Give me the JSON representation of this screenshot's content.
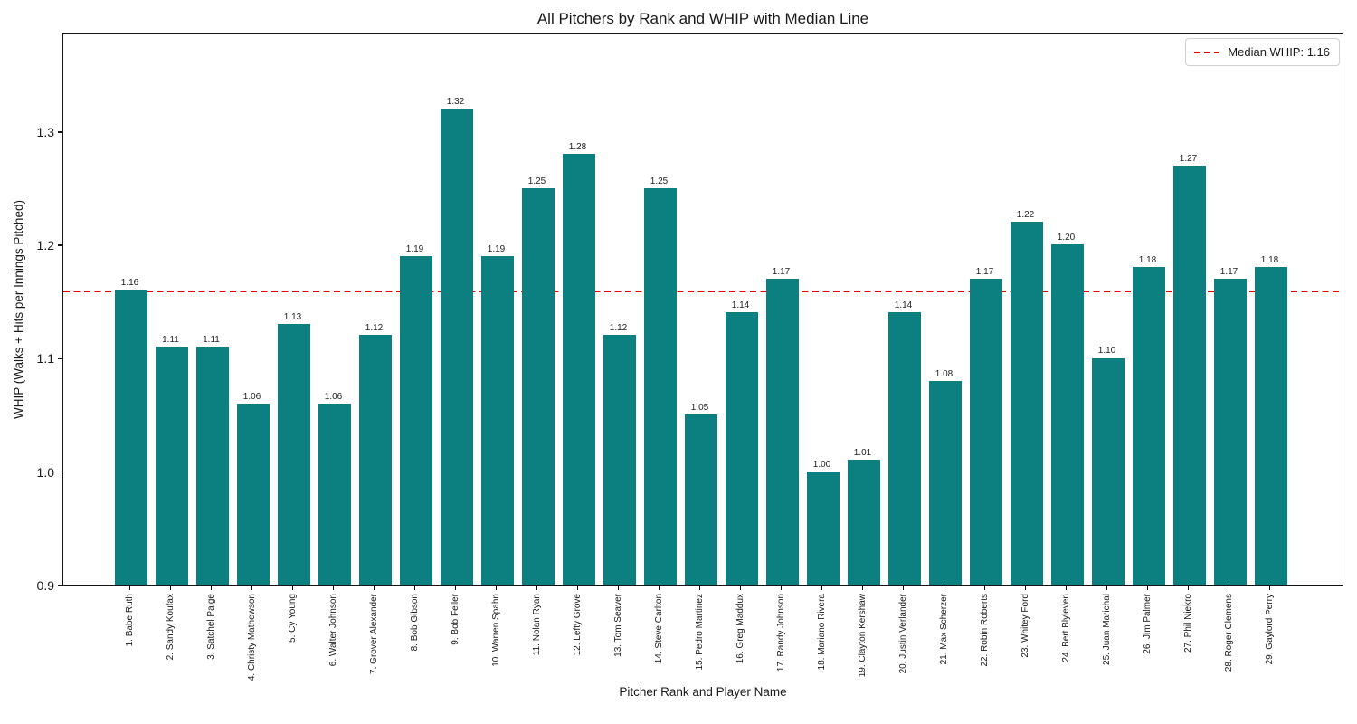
{
  "title": "All Pitchers by Rank and WHIP with Median Line",
  "legend": {
    "label": "Median WHIP: 1.16",
    "position": "upper right"
  },
  "axes": {
    "x_label": "Pitcher Rank and Player Name",
    "y_label": "WHIP (Walks + Hits per Innings Pitched)"
  },
  "colors": {
    "bar": "#0c8080",
    "median_line": "#ee0000",
    "text": "#1a1a1a",
    "spine": "#141414"
  },
  "chart_data": {
    "type": "bar",
    "title": "All Pitchers by Rank and WHIP with Median Line",
    "xlabel": "Pitcher Rank and Player Name",
    "ylabel": "WHIP (Walks + Hits per Innings Pitched)",
    "categories": [
      "1. Babe Ruth",
      "2. Sandy Koufax",
      "3. Satchel Paige",
      "4. Christy Mathewson",
      "5. Cy Young",
      "6. Walter Johnson",
      "7. Grover Alexander",
      "8. Bob Gibson",
      "9. Bob Feller",
      "10. Warren Spahn",
      "11. Nolan Ryan",
      "12. Lefty Grove",
      "13. Tom Seaver",
      "14. Steve Carlton",
      "15. Pedro Martinez",
      "16. Greg Maddux",
      "17. Randy Johnson",
      "18. Mariano Rivera",
      "19. Clayton Kershaw",
      "20. Justin Verlander",
      "21. Max Scherzer",
      "22. Robin Roberts",
      "23. Whitey Ford",
      "24. Bert Blyleven",
      "25. Juan Marichal",
      "26. Jim Palmer",
      "27. Phil Niekro",
      "28. Roger Clemens",
      "29. Gaylord Perry"
    ],
    "values": [
      1.16,
      1.11,
      1.11,
      1.06,
      1.13,
      1.06,
      1.12,
      1.19,
      1.32,
      1.19,
      1.25,
      1.28,
      1.12,
      1.25,
      1.05,
      1.14,
      1.17,
      1.0,
      1.01,
      1.14,
      1.08,
      1.17,
      1.22,
      1.2,
      1.1,
      1.18,
      1.27,
      1.17,
      1.18
    ],
    "median": 1.16,
    "median_label": "Median WHIP: 1.16",
    "yticks": [
      "0.9",
      "1.0",
      "1.1",
      "1.2",
      "1.3"
    ],
    "ytick_values": [
      0.9,
      1.0,
      1.1,
      1.2,
      1.3
    ],
    "ylim": [
      0.9,
      1.387
    ],
    "grid": false,
    "legend_position": "upper right",
    "bar_color": "#0c8080",
    "median_color": "#ee0000"
  }
}
